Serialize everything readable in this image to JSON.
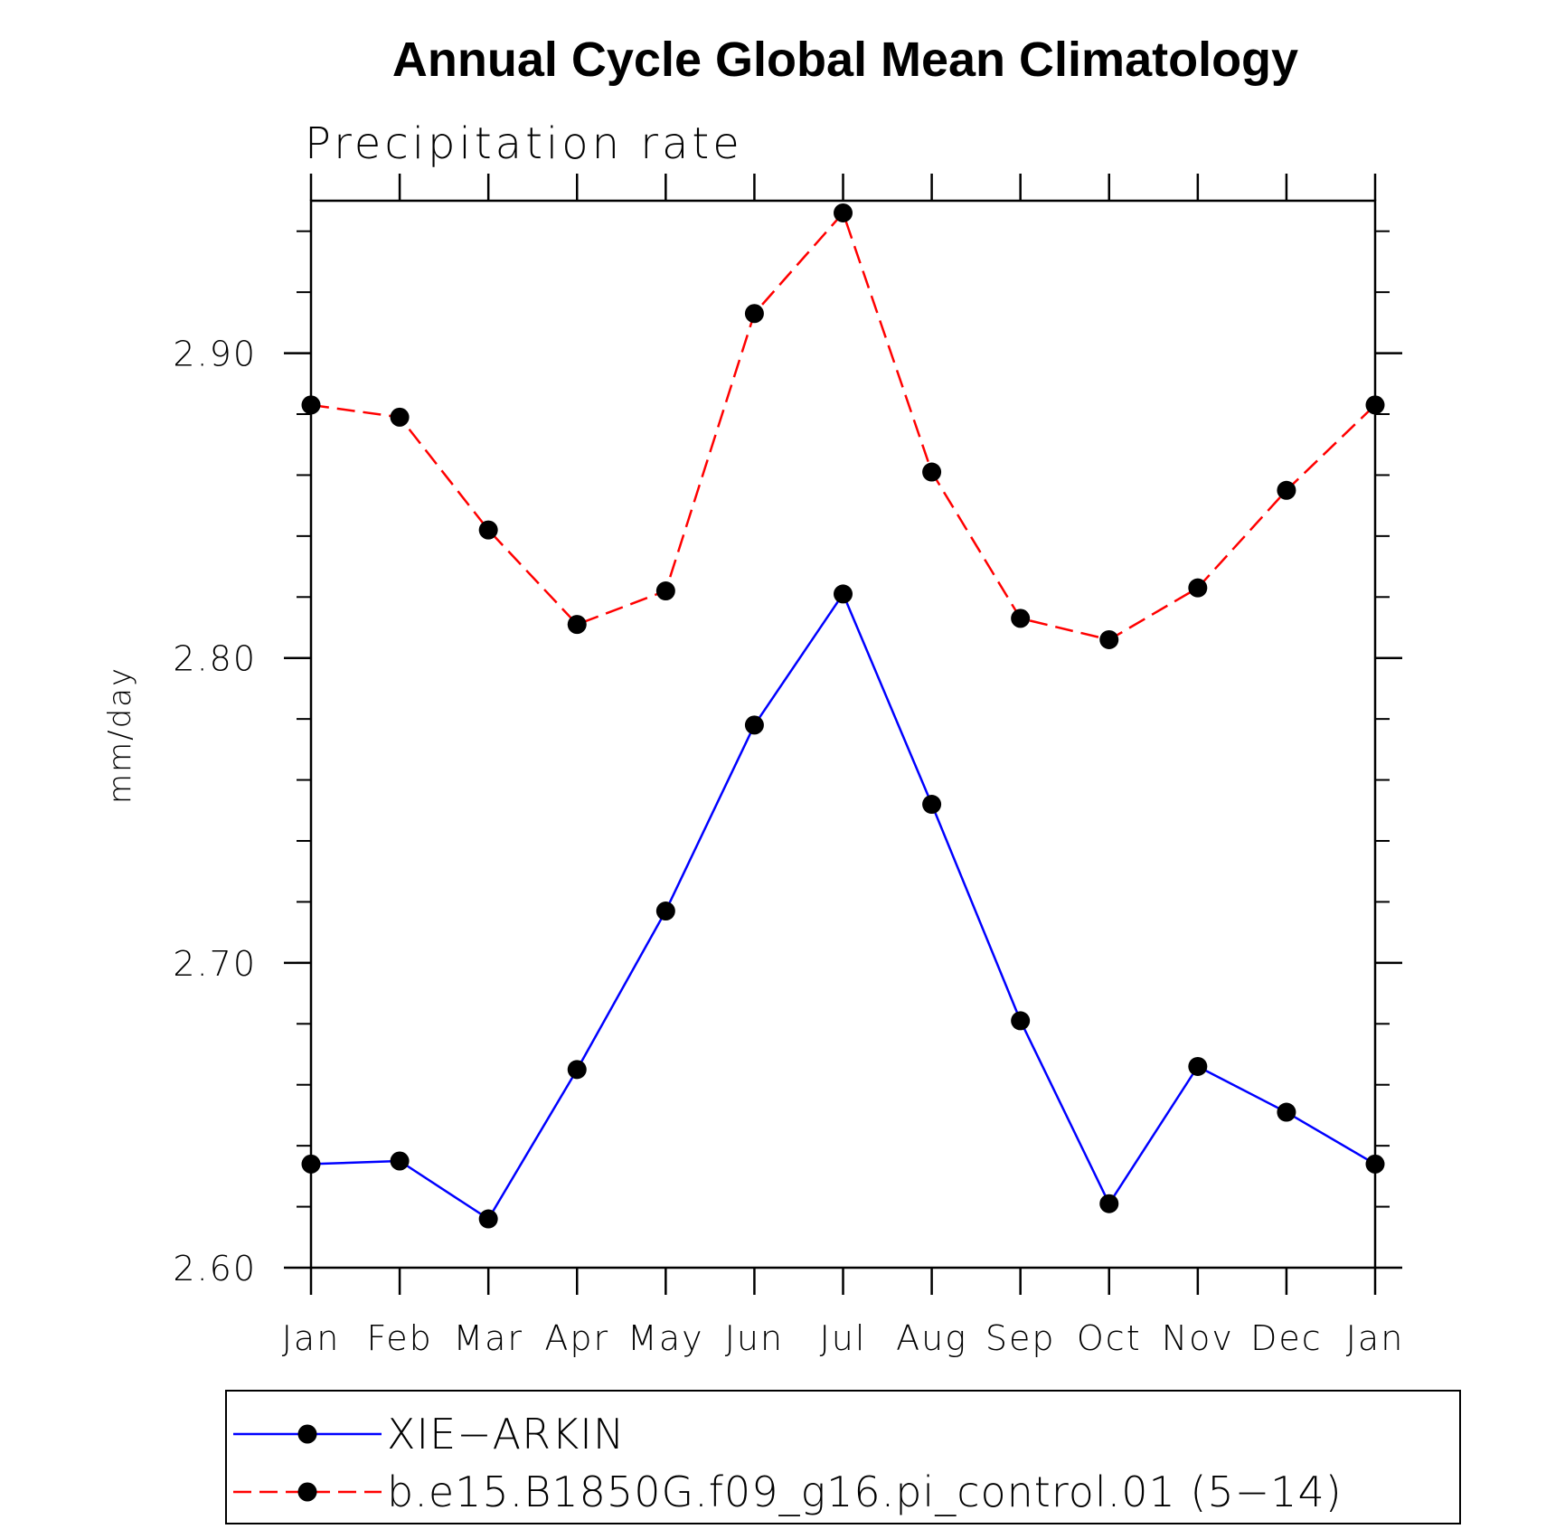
{
  "chart_data": {
    "type": "line",
    "title": "Annual Cycle Global Mean Climatology",
    "subtitle": "Precipitation rate",
    "ylabel": "mm/day",
    "xlabel": "",
    "categories": [
      "Jan",
      "Feb",
      "Mar",
      "Apr",
      "May",
      "Jun",
      "Jul",
      "Aug",
      "Sep",
      "Oct",
      "Nov",
      "Dec",
      "Jan"
    ],
    "ylim": [
      2.6,
      2.95
    ],
    "yticks": [
      "2.60",
      "2.70",
      "2.80",
      "2.90"
    ],
    "y_minor_step": 0.02,
    "grid": false,
    "legend_position": "bottom",
    "series": [
      {
        "name": "XIE−ARKIN",
        "color": "#0000ff",
        "line_style": "solid",
        "marker": "filled-circle",
        "marker_color": "#000000",
        "values": [
          2.634,
          2.635,
          2.616,
          2.665,
          2.717,
          2.778,
          2.821,
          2.752,
          2.681,
          2.621,
          2.666,
          2.651,
          2.634
        ]
      },
      {
        "name": "b.e15.B1850G.f09_g16.pi_control.01 (5−14)",
        "color": "#ff0000",
        "line_style": "dashed",
        "marker": "filled-circle",
        "marker_color": "#000000",
        "values": [
          2.883,
          2.879,
          2.842,
          2.811,
          2.822,
          2.913,
          2.946,
          2.861,
          2.813,
          2.806,
          2.823,
          2.855,
          2.883
        ]
      }
    ]
  }
}
